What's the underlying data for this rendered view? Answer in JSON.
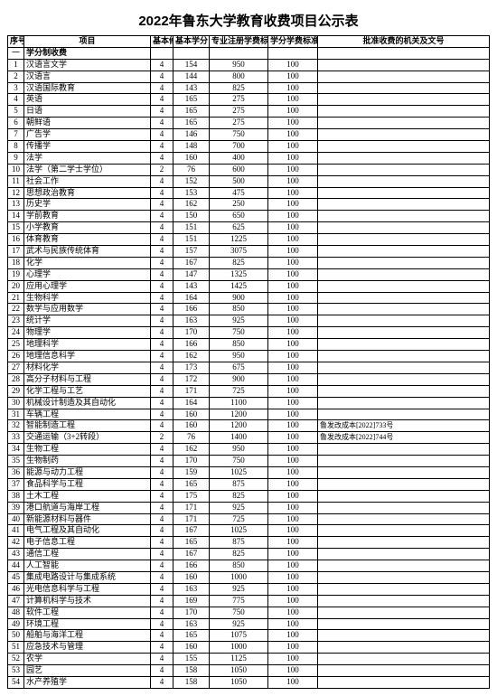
{
  "title": "2022年鲁东大学教育收费项目公示表",
  "columns": {
    "seq": "序号",
    "item": "项目",
    "basicYears": "基本修业",
    "basicCredits": "基本学分",
    "majorFee": "专业注册学费标准（元/生·学年）",
    "creditFee": "学分学费标准（元/学分）",
    "approval": "批准收费的机关及文号"
  },
  "sectionLabel": "一",
  "sectionTitle": "学分制收费",
  "rows": [
    {
      "n": 1,
      "name": "汉语言文学",
      "a": 4,
      "b": 154,
      "c": 950,
      "d": 100,
      "e": ""
    },
    {
      "n": 2,
      "name": "汉语言",
      "a": 4,
      "b": 144,
      "c": 800,
      "d": 100,
      "e": ""
    },
    {
      "n": 3,
      "name": "汉语国际教育",
      "a": 4,
      "b": 143,
      "c": 825,
      "d": 100,
      "e": ""
    },
    {
      "n": 4,
      "name": "英语",
      "a": 4,
      "b": 165,
      "c": 275,
      "d": 100,
      "e": ""
    },
    {
      "n": 5,
      "name": "日语",
      "a": 4,
      "b": 165,
      "c": 275,
      "d": 100,
      "e": ""
    },
    {
      "n": 6,
      "name": "朝鲜语",
      "a": 4,
      "b": 165,
      "c": 275,
      "d": 100,
      "e": ""
    },
    {
      "n": 7,
      "name": "广告学",
      "a": 4,
      "b": 146,
      "c": 750,
      "d": 100,
      "e": ""
    },
    {
      "n": 8,
      "name": "传播学",
      "a": 4,
      "b": 148,
      "c": 700,
      "d": 100,
      "e": ""
    },
    {
      "n": 9,
      "name": "法学",
      "a": 4,
      "b": 160,
      "c": 400,
      "d": 100,
      "e": ""
    },
    {
      "n": 10,
      "name": "法学（第二学士学位）",
      "a": 2,
      "b": 76,
      "c": 600,
      "d": 100,
      "e": ""
    },
    {
      "n": 11,
      "name": "社会工作",
      "a": 4,
      "b": 152,
      "c": 500,
      "d": 100,
      "e": ""
    },
    {
      "n": 12,
      "name": "思想政治教育",
      "a": 4,
      "b": 153,
      "c": 475,
      "d": 100,
      "e": ""
    },
    {
      "n": 13,
      "name": "历史学",
      "a": 4,
      "b": 162,
      "c": 250,
      "d": 100,
      "e": ""
    },
    {
      "n": 14,
      "name": "学前教育",
      "a": 4,
      "b": 150,
      "c": 650,
      "d": 100,
      "e": ""
    },
    {
      "n": 15,
      "name": "小学教育",
      "a": 4,
      "b": 151,
      "c": 625,
      "d": 100,
      "e": ""
    },
    {
      "n": 16,
      "name": "体育教育",
      "a": 4,
      "b": 151,
      "c": 1225,
      "d": 100,
      "e": ""
    },
    {
      "n": 17,
      "name": "武术与民族传统体育",
      "a": 4,
      "b": 157,
      "c": 3075,
      "d": 100,
      "e": ""
    },
    {
      "n": 18,
      "name": "化学",
      "a": 4,
      "b": 167,
      "c": 825,
      "d": 100,
      "e": ""
    },
    {
      "n": 19,
      "name": "心理学",
      "a": 4,
      "b": 147,
      "c": 1325,
      "d": 100,
      "e": ""
    },
    {
      "n": 20,
      "name": "应用心理学",
      "a": 4,
      "b": 143,
      "c": 1425,
      "d": 100,
      "e": ""
    },
    {
      "n": 21,
      "name": "生物科学",
      "a": 4,
      "b": 164,
      "c": 900,
      "d": 100,
      "e": ""
    },
    {
      "n": 22,
      "name": "数学与应用数学",
      "a": 4,
      "b": 166,
      "c": 850,
      "d": 100,
      "e": ""
    },
    {
      "n": 23,
      "name": "统计学",
      "a": 4,
      "b": 163,
      "c": 925,
      "d": 100,
      "e": ""
    },
    {
      "n": 24,
      "name": "物理学",
      "a": 4,
      "b": 170,
      "c": 750,
      "d": 100,
      "e": ""
    },
    {
      "n": 25,
      "name": "地理科学",
      "a": 4,
      "b": 166,
      "c": 850,
      "d": 100,
      "e": ""
    },
    {
      "n": 26,
      "name": "地理信息科学",
      "a": 4,
      "b": 162,
      "c": 950,
      "d": 100,
      "e": ""
    },
    {
      "n": 27,
      "name": "材料化学",
      "a": 4,
      "b": 173,
      "c": 675,
      "d": 100,
      "e": ""
    },
    {
      "n": 28,
      "name": "高分子材料与工程",
      "a": 4,
      "b": 172,
      "c": 900,
      "d": 100,
      "e": ""
    },
    {
      "n": 29,
      "name": "化学工程与工艺",
      "a": 4,
      "b": 171,
      "c": 725,
      "d": 100,
      "e": ""
    },
    {
      "n": 30,
      "name": "机械设计制造及其自动化",
      "a": 4,
      "b": 164,
      "c": 1100,
      "d": 100,
      "e": ""
    },
    {
      "n": 31,
      "name": "车辆工程",
      "a": 4,
      "b": 160,
      "c": 1200,
      "d": 100,
      "e": ""
    },
    {
      "n": 32,
      "name": "智能制造工程",
      "a": 4,
      "b": 160,
      "c": 1200,
      "d": 100,
      "e": "鲁发改成本[2022]733号"
    },
    {
      "n": 33,
      "name": "交通运输（3+2转段）",
      "a": 2,
      "b": 76,
      "c": 1400,
      "d": 100,
      "e": "鲁发改成本[2022]744号"
    },
    {
      "n": 34,
      "name": "生物工程",
      "a": 4,
      "b": 162,
      "c": 950,
      "d": 100,
      "e": ""
    },
    {
      "n": 35,
      "name": "生物制药",
      "a": 4,
      "b": 170,
      "c": 750,
      "d": 100,
      "e": ""
    },
    {
      "n": 36,
      "name": "能源与动力工程",
      "a": 4,
      "b": 159,
      "c": 1025,
      "d": 100,
      "e": ""
    },
    {
      "n": 37,
      "name": "食品科学与工程",
      "a": 4,
      "b": 165,
      "c": 875,
      "d": 100,
      "e": ""
    },
    {
      "n": 38,
      "name": "土木工程",
      "a": 4,
      "b": 175,
      "c": 825,
      "d": 100,
      "e": ""
    },
    {
      "n": 39,
      "name": "港口航道与海岸工程",
      "a": 4,
      "b": 171,
      "c": 925,
      "d": 100,
      "e": ""
    },
    {
      "n": 40,
      "name": "新能源材料与器件",
      "a": 4,
      "b": 171,
      "c": 725,
      "d": 100,
      "e": ""
    },
    {
      "n": 41,
      "name": "电气工程及其自动化",
      "a": 4,
      "b": 167,
      "c": 1025,
      "d": 100,
      "e": ""
    },
    {
      "n": 42,
      "name": "电子信息工程",
      "a": 4,
      "b": 165,
      "c": 875,
      "d": 100,
      "e": ""
    },
    {
      "n": 43,
      "name": "通信工程",
      "a": 4,
      "b": 167,
      "c": 825,
      "d": 100,
      "e": ""
    },
    {
      "n": 44,
      "name": "人工智能",
      "a": 4,
      "b": 166,
      "c": 850,
      "d": 100,
      "e": ""
    },
    {
      "n": 45,
      "name": "集成电路设计与集成系统",
      "a": 4,
      "b": 160,
      "c": 1000,
      "d": 100,
      "e": ""
    },
    {
      "n": 46,
      "name": "光电信息科学与工程",
      "a": 4,
      "b": 163,
      "c": 925,
      "d": 100,
      "e": ""
    },
    {
      "n": 47,
      "name": "计算机科学与技术",
      "a": 4,
      "b": 169,
      "c": 775,
      "d": 100,
      "e": ""
    },
    {
      "n": 48,
      "name": "软件工程",
      "a": 4,
      "b": 170,
      "c": 750,
      "d": 100,
      "e": ""
    },
    {
      "n": 49,
      "name": "环境工程",
      "a": 4,
      "b": 163,
      "c": 925,
      "d": 100,
      "e": ""
    },
    {
      "n": 50,
      "name": "船舶与海洋工程",
      "a": 4,
      "b": 165,
      "c": 1075,
      "d": 100,
      "e": ""
    },
    {
      "n": 51,
      "name": "应急技术与管理",
      "a": 4,
      "b": 160,
      "c": 1000,
      "d": 100,
      "e": ""
    },
    {
      "n": 52,
      "name": "农学",
      "a": 4,
      "b": 155,
      "c": 1125,
      "d": 100,
      "e": ""
    },
    {
      "n": 53,
      "name": "园艺",
      "a": 4,
      "b": 158,
      "c": 1050,
      "d": 100,
      "e": ""
    },
    {
      "n": 54,
      "name": "水产养殖学",
      "a": 4,
      "b": 158,
      "c": 1050,
      "d": 100,
      "e": ""
    }
  ]
}
